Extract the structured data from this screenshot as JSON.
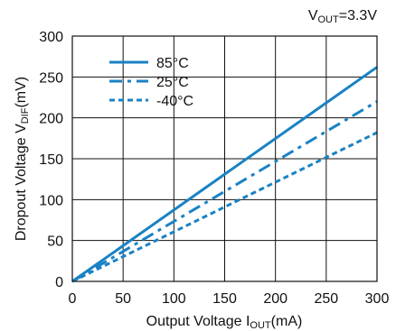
{
  "condition": {
    "main": "V",
    "sub": "OUT",
    "rest": "=3.3V"
  },
  "chart_data": {
    "type": "line",
    "title": "",
    "xlabel": {
      "main": "Output Voltage I",
      "sub": "OUT",
      "rest": "(mA)"
    },
    "ylabel": {
      "main": "Dropout Voltage V",
      "sub": "DIF",
      "rest": "(mV)"
    },
    "xlim": [
      0,
      300
    ],
    "ylim": [
      0,
      300
    ],
    "xticks": [
      0,
      50,
      100,
      150,
      200,
      250,
      300
    ],
    "yticks": [
      0,
      50,
      100,
      150,
      200,
      250,
      300
    ],
    "grid": true,
    "legend": "top-left",
    "color": "#1a82c4",
    "series": [
      {
        "name": "85°C",
        "style": "solid",
        "x": [
          0,
          300
        ],
        "y": [
          0,
          262
        ]
      },
      {
        "name": "25°C",
        "style": "dashdot",
        "x": [
          0,
          300
        ],
        "y": [
          0,
          220
        ]
      },
      {
        "name": "-40°C",
        "style": "dotted",
        "x": [
          0,
          300
        ],
        "y": [
          0,
          182
        ]
      }
    ]
  }
}
